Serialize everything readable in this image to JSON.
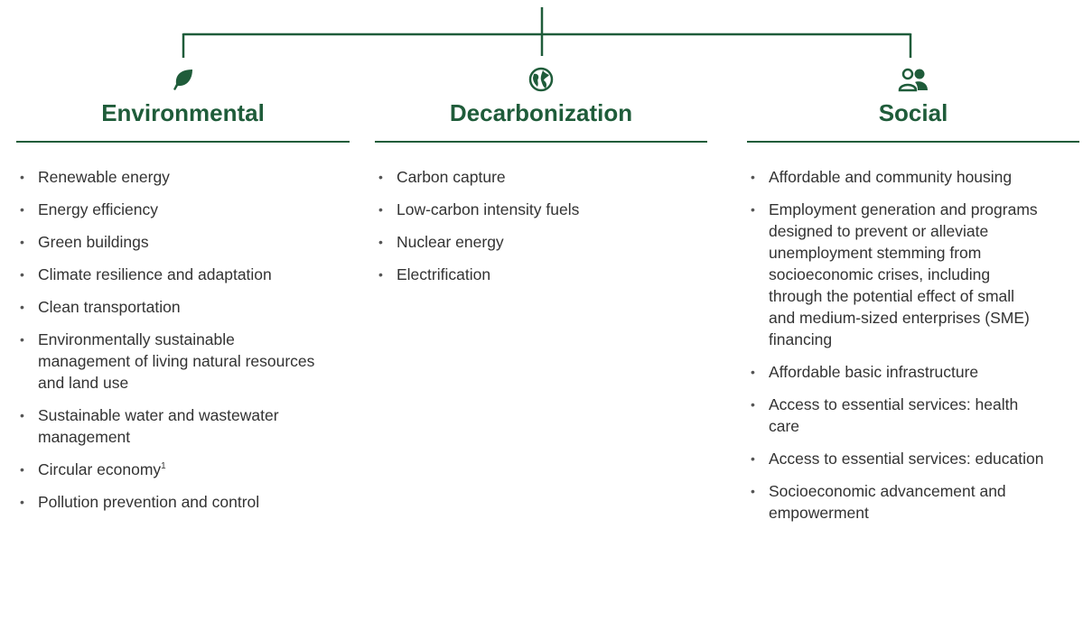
{
  "columns": [
    {
      "title": "Environmental",
      "items": [
        {
          "text": "Renewable energy"
        },
        {
          "text": "Energy efficiency"
        },
        {
          "text": "Green buildings"
        },
        {
          "text": "Climate resilience and adaptation"
        },
        {
          "text": "Clean transportation"
        },
        {
          "text": "Environmentally sustainable management of living natural resources and land use"
        },
        {
          "text": "Sustainable water and wastewater management"
        },
        {
          "text": "Circular economy",
          "note": "1"
        },
        {
          "text": "Pollution prevention and control"
        }
      ]
    },
    {
      "title": "Decarbonization",
      "items": [
        {
          "text": "Carbon capture"
        },
        {
          "text": "Low-carbon intensity fuels"
        },
        {
          "text": "Nuclear energy"
        },
        {
          "text": "Electrification"
        }
      ]
    },
    {
      "title": "Social",
      "items": [
        {
          "text": "Affordable and community housing"
        },
        {
          "text": "Employment generation and programs designed to prevent or alleviate unemployment stemming from socioeconomic crises, including through the potential effect of small and medium-sized enterprises (SME) financing"
        },
        {
          "text": "Affordable basic infrastructure"
        },
        {
          "text": "Access to essential services: health care"
        },
        {
          "text": "Access to essential services: education"
        },
        {
          "text": "Socioeconomic advancement and empowerment"
        }
      ]
    }
  ]
}
